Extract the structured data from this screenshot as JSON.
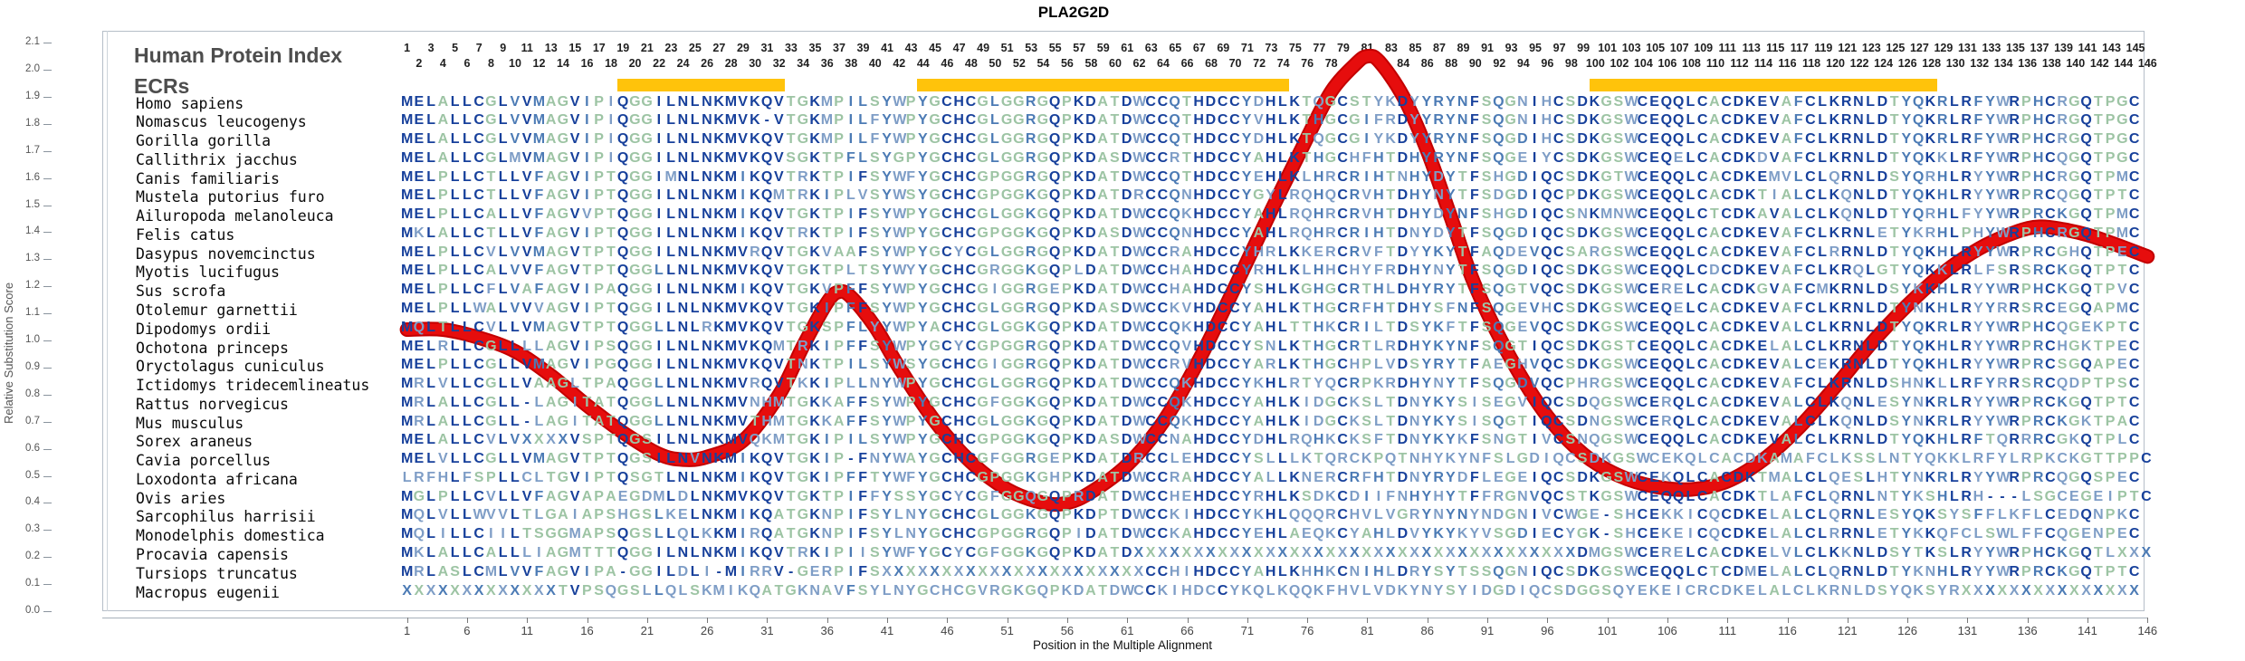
{
  "title": "PLA2G2D",
  "legend": {
    "curve_label": "Human Protein Index",
    "ecr_label": "ECRs"
  },
  "y_axis": {
    "label": "Relative Substitution Score",
    "min": 0.0,
    "max": 2.1,
    "step": 0.1
  },
  "x_axis": {
    "label": "Position in the Multiple Alignment",
    "first_tick": 1,
    "tick_step": 5,
    "last_tick": 146
  },
  "colors": {
    "curve_red": "#E60D0D",
    "curve_red_edge": "#C30000",
    "ecr_yellow": "#FFC30B",
    "seq_dark": "#17409B",
    "seq_mid": "#4C7BB5",
    "seq_light": "#7E9DC6",
    "seq_green": "#9DC4A4",
    "label_gray": "#4D4D4D"
  },
  "ecr_regions": [
    {
      "start": 19,
      "end": 32
    },
    {
      "start": 44,
      "end": 74
    },
    {
      "start": 100,
      "end": 128
    }
  ],
  "alignment": {
    "length": 146,
    "top_numbering": "1 to 146, odd numbers on upper row, even numbers on lower row",
    "species": [
      "Homo sapiens",
      "Nomascus leucogenys",
      "Gorilla gorilla",
      "Callithrix jacchus",
      "Canis familiaris",
      "Mustela putorius furo",
      "Ailuropoda melanoleuca",
      "Felis catus",
      "Dasypus novemcinctus",
      "Myotis lucifugus",
      "Sus scrofa",
      "Otolemur garnettii",
      "Dipodomys ordii",
      "Ochotona princeps",
      "Oryctolagus cuniculus",
      "Ictidomys tridecemlineatus",
      "Rattus norvegicus",
      "Mus musculus",
      "Sorex araneus",
      "Cavia porcellus",
      "Loxodonta africana",
      "Ovis aries",
      "Sarcophilus harrisii",
      "Monodelphis domestica",
      "Procavia capensis",
      "Tursiops truncatus",
      "Macropus eugenii"
    ],
    "sequences": [
      "MELALLCGLVVMAGVIPIQGGILNLNKMVKQVTGKMPILSYWPYGCHCGLGGRGQPKDATDWCCQTHDCCYDHLKTQGCSTYKDYYRYNFSQGNIHCSDKGSWCEQQLCACDKEVAFCLKRNLDTYQKRLRFYWRPHCRGQTPGC",
      "MELALLCGLVVMAGVIPIQGGILNLNKMVK-VTGKMPILFYWPYGCHCGLGGRGQPKDATDWCCQTHDCCYVHLKTHGCGIFRDYYRYNFSQGNIHCSDKGSWCEQQLCACDKEVAFCLKRNLDTYQKRLRFYWRPHCRGQTPGC",
      "MELALLCGLVVMAGVIPIQGGILNLNKMVKQVTGKMPILFYWPYGCHCGLGGRGQPKDATDWCCQTHDCCYDHLKTQGCGIYKDYYRYNFSQGDIHCSDKGSWCEQQLCACDKEVAFCLKRNLDTYQKRLRFYWRPHCRGQTPGC",
      "MELALLCGLMVMAGVIPIQGGILNLNKMVKQVSGKTPFLSYGPYGCHCGLGGRGQPKDASDWCCRTHDCCYAHLKTHGCHFHTDHYRYNFSQGEIYCSDKGSWCEQELCACDKDVAFCLKRNLDTYQKKLRFYWRPHCQGQTPGC",
      "MELPLLCTLLVFAGVIPTQGGIMNLNKMIKQVTRKTPIFSYWFYGCHCGPGGRGQPKDATDWCCQTHDCCYEHLKLHRCRIHTNHYDYTFSHGDIQCSDKGTWCEQQLCACDKEMVLCLQRNLDSYQRHLRYYWRPHCRGQTPMC",
      "MELPLLCTLLVFAGVIPTQGGILNLNKMIKQMTRKIPLVSYWSYGCHCGPGGKGQPKDATDRCCQNHDCCYGYLRQHQCRVHTDHYNYTFSDGDIQCPDKGSWCEQQLCACDKTIALCLKQNLDTYQKHLRYYWRPRCQGQTPTC",
      "MELPLLCALLVFAGVVPTQGGILNLNKMIKQVTGKTPIFSYWPYGCHCGLGGKGQPKDATDWCCQKHDCCYAHLRQHRCRVHTDHYDYNFSHGDIQCSNKMNWCEQQLCTCDKAVALCLKQNLDTYQRHLFYYWRPRCKGQTPMC",
      "MKLALLCTLLVFAGVIPTQGGILNLNKMIKQVTRKTPIFSYWPYGCHCGPGGKGQPKDASDWCCQNHDCCYAHLRQHRCRIHTDNYDYTFSQGDIQCSDKGSWCEQQLCACDKEVAFCLKRNLETYKRHLPHYWRPHCRGQTPMC",
      "MELPLLCVLVVMAGVTPTQGGILNLNKMVRQVTGKVAAFSYWPYGCYCGLGGRGQPKDATDWCCRAHDCCYHRLKKERCRVFTDYYKYTFAQDEVQCSARGSWCEQQLCACDKEVAFCLRRNLDTYQKHLRYYWRPRCGHQTPEC",
      "MELPLLCALVVFAGVTPTQGGLLNLNKMVKQVTGKTPLTSYWYYGCHCGRGGKGQPLDATDWCCHAHDCCYRHLKLHHCHYFRDHYNYTFSQGDIQCSDKGSWCEQQLCDCDKEVAFCLKRQLGTYQKKLRLFSRSRCKGQTPTC",
      "MELPLLCFLVAFAGVIPAQGGILNLNKMIKQVTGKVPFFSYWPYGCHCGIGGRGEPKDATDWCCHAHDCCYSHLKGHGCRTHLDHYRYTFSQGTVQCSDKGSWCERELCACDKGVAFCMKRNLDSYKKHLRYYWRPHCKGQTPVC",
      "MELPLLWALVVVAGVIPTQGGILNLNKMVKQVTGKIPFFSYWPYGCHCGLGGRGQPKDASDWCCKVHDCCYAHLKTHGCRFHTDHYSFNFSQGEVHCSDKGSWCEQELCACDKEVAFCLKRNLDTYNKHLRYYRRSRCEGQAPMC",
      "MQLTLLCVLLVMAGVTPTQGGLLNLRKMVKQVTGKSPFLYYWPYACHCGLGGKGQPKDATDWCCQKHDCCYAHLTTHKCRILTDSYKFTFSQGEVQCSDKGSWCEQQLCACDKEVALCLKRNLDTYQKRLRYYWRPHCQGEKPTC",
      "MELRLLCGLLLLAGVIPSQGGILNLNKMVKQMTRKIPFFSYWPYGCYCGPGGRGQPKDATDWCCQVHDCCYSNLKTHGCRTLRDHYKYNFSQGTIQCSDKGSTCEQQLCACDKELALCLKRNLDTYQKHLRYYWRPRCHGKTPEC",
      "MELPLLCGLLVMAGVIPGQGGILNLNKMVKQVTNKTPILSYWSYGCHCGIGGRGQPKDATDWCCRVHDCCYARLKTHGCHPLVDSYRYTFAEGHVQCSDKGSWCEQQLCACDKEVALCEKRNLDTYQKHLRYYWRPRCSGQAPEC",
      "MRLVLLCGLLVAAGLTPAQGGLLNLNKMVRQVTKKIPLLNYWPYGCHCGLGGRGQPKDATDWCCQKHDCCYKHLRTYQCRPKRDHYNYTFSQGDVQCPHRGSWCEQQLCACDKEVAFCLKRNLDSHNKLLRFYRRSRCQDPTPSC",
      "MRLALLCGLL-LAGITATQGGLLNLNKMVNHMTGKKAFFSYWPYGCHCGFGGKGQPKDATDWCCQKHDCCYAHLKIDGCKSLTDNYKYSISEGVIQCSDQGSWCERQLCACDKEVALCLKQNLESYNKRLRYYWRPRCKGQTPTC",
      "MRLALLCGLL-LAGITATQGGLLNLNKMVTHMTGKKAFFSYWPYGCHCGLGGKGQPKDATDWCCQKHDCCYAHLKIDGCKSLTDNYKYSISQGTIQCSDNGSWCERQLCACDKEVALCLKQNLDSYNKRLRYYWRPRCKGKTPAC",
      "MELALLCVLVXXXXVSPTQGSILNLNKMVQKMTGKIPILSYWPYGCHCGPGGKGQPKDASDWCCNAHDCCYDHLRQHKCKSFTDNYKYKFSNGTIVCSNQGSWCEQQLCACDKEVALCLKRNLDTYQKHLRFTQRRRCGKQTPLC",
      "MELVLLCGLLVMAGVTPTQGSILNVNKMIKQVTGKIP-FNYWAYGCHCGFGGRGEPKDATDRCCLEHDCCYSLLLKTQRCKPQTNHYKYNFSLGDIQCSDKGSWCEKQLCACDKAMAFCLKSSLNTYQKKLRFYLRPKCKGTTPPC",
      "LRFHLFSPLLCLTGVIPTQSGTLNLNKMIKQVTGKIPFFTYWFYGCHCGPGGKGHPKDATDWCCRAHDCCYALLKNERCRFHTDNYRYDFLEGEIQCSDKGSWCEKQLCACDKTMALCLQESLHTYNKRLRYYWRPRCQGQSPEC",
      "MGLPLLCVLLVFAGVAPAEGDMLDLNKMVKQVTGKTPIFFYSSYGCYCGFGGQGQPRDATDWCCHEHDCCYRHLKSDKCDIIFNHYHYTFFRGNVQCSTKGSWCEQQLCACDKTLAFCLQRNLNTYKSHLRH---LSGCEGEIPTC",
      "MQLVLLWVVLTLGAIAPSHGSLKELNKMIKQATGKNPIFSYLNYGCHCGLGGKGQPKDPTDWCCKIHDCCYKHLQQQRCHVLVGRYNYNYNDGNIVCWGE-SHCEKKICQCDKELALCLQRNLESYQKSYSFFLKFLCEDQNPKC",
      "MQLILLCIILTSGGMAPSQGSLLQLKKMIRQATGKNPIFSYLNYGCHCGPGGRGQPIDATDWCCKAHDCCYEHLAEQKCYAHLDVYKYKYVSGDIECYGK-SHCEKEICQCDKELALCLRRNLETYKKQFCLSWLFFCQGENPEC",
      "MKLALLCALLLIAGMTTTQGGILNLNKMIKQVTRKIPIISYWFYGCYCGFGGKGQPKDATDXXXXXXXXXXXXXXXXXXXXXXXXXXXXXXXXXXXXXDMGSWCERELCACDKELVLCLKKNLDSYTKSLRYYWRPHCKGQTLXXX",
      "MRLASLCMLVVFAGVIPA-GGILDLI-MIRRV-GERPIFSXXXXXXXXXXXXXXXXXXXXXXCCHIHDCCYAHLKHHKCNIHLDRYSYTSSQGNIQCSDKGSWCEQQLCTCDMELALCLQRNLDTYKNHLRYYWRPRCKGQTPTC",
      "XXXXXXXXXXXXXTVPSQGSLLQLSKMIKQATGKNAVFSYLNYGCHCGVRGKGQPKDATDWCCKIHDCCYKQLKQQKFHVLVDKYNYSYIDGDIQCSDGGSQYEKEICRCDKELALCLKRNLDSYQKSYRXXXXXXXXXXXXXXX"
    ]
  },
  "chart_data": {
    "type": "line",
    "title": "PLA2G2D",
    "xlabel": "Position in the Multiple Alignment",
    "ylabel": "Relative Substitution Score",
    "xlim": [
      1,
      146
    ],
    "ylim": [
      0.0,
      2.1
    ],
    "grid": false,
    "legend_position": "top-left-inside",
    "series": [
      {
        "name": "Human Protein Index",
        "color": "#E60D0D",
        "x": [
          1,
          4,
          7,
          10,
          13,
          16,
          19,
          22,
          24,
          26,
          29,
          32,
          34,
          36,
          37,
          38,
          40,
          42,
          45,
          48,
          51,
          54,
          56,
          58,
          61,
          64,
          67,
          70,
          73,
          76,
          78,
          80,
          81,
          82,
          84,
          86,
          88,
          90,
          93,
          96,
          99,
          102,
          105,
          108,
          111,
          114,
          117,
          120,
          123,
          126,
          129,
          132,
          135,
          137,
          139,
          141,
          143,
          146
        ],
        "y": [
          1.04,
          1.04,
          1.01,
          0.96,
          0.87,
          0.76,
          0.66,
          0.58,
          0.56,
          0.57,
          0.63,
          0.8,
          0.98,
          1.14,
          1.18,
          1.16,
          1.05,
          0.9,
          0.7,
          0.55,
          0.45,
          0.4,
          0.4,
          0.44,
          0.54,
          0.7,
          0.93,
          1.2,
          1.48,
          1.75,
          1.92,
          2.02,
          2.05,
          2.03,
          1.9,
          1.7,
          1.45,
          1.2,
          0.93,
          0.72,
          0.58,
          0.5,
          0.46,
          0.45,
          0.48,
          0.56,
          0.68,
          0.83,
          0.99,
          1.13,
          1.25,
          1.34,
          1.4,
          1.42,
          1.41,
          1.39,
          1.36,
          1.31
        ]
      },
      {
        "name": "ECRs",
        "color": "#FFC30B",
        "regions": [
          [
            19,
            32
          ],
          [
            44,
            74
          ],
          [
            100,
            128
          ]
        ]
      }
    ]
  }
}
